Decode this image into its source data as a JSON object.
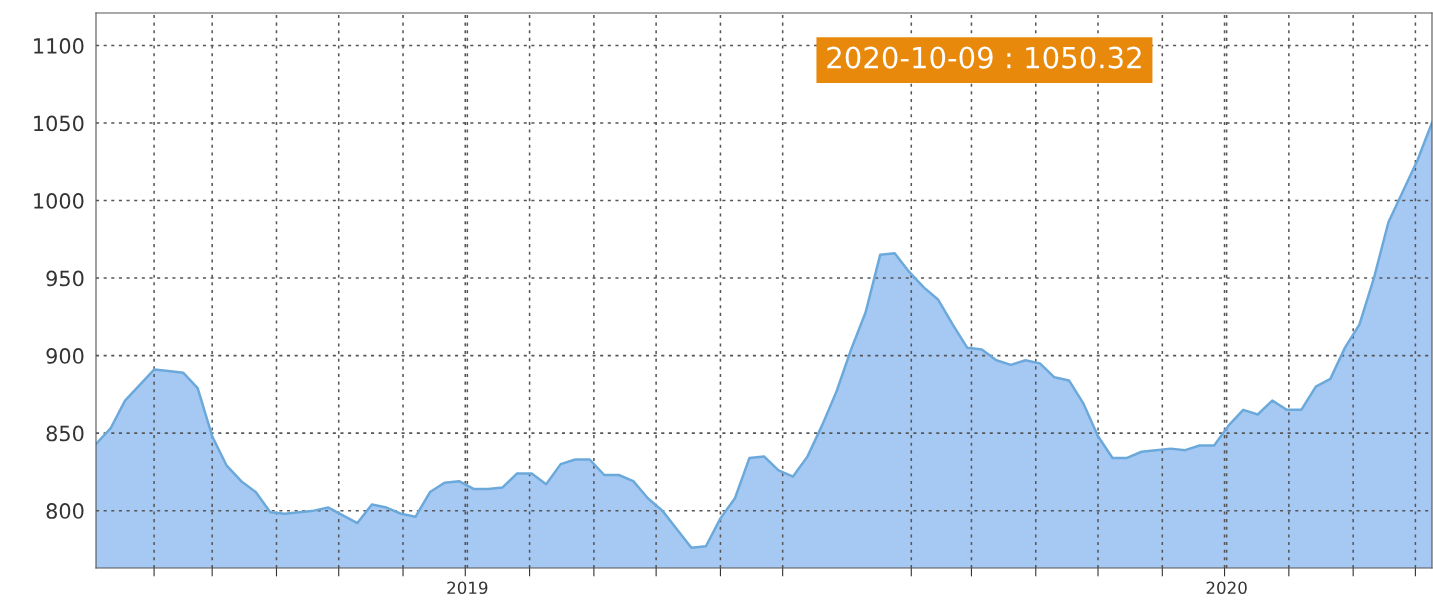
{
  "chart_data": {
    "type": "area",
    "x": [
      "2019-01-04",
      "2019-01-11",
      "2019-01-18",
      "2019-01-25",
      "2019-02-01",
      "2019-02-08",
      "2019-02-15",
      "2019-02-22",
      "2019-03-01",
      "2019-03-08",
      "2019-03-15",
      "2019-03-22",
      "2019-03-29",
      "2019-04-05",
      "2019-04-12",
      "2019-04-19",
      "2019-04-26",
      "2019-05-03",
      "2019-05-10",
      "2019-05-17",
      "2019-05-24",
      "2019-05-31",
      "2019-06-07",
      "2019-06-14",
      "2019-06-21",
      "2019-06-28",
      "2019-07-05",
      "2019-07-12",
      "2019-07-19",
      "2019-07-26",
      "2019-08-02",
      "2019-08-09",
      "2019-08-16",
      "2019-08-23",
      "2019-08-30",
      "2019-09-06",
      "2019-09-13",
      "2019-09-20",
      "2019-09-27",
      "2019-10-04",
      "2019-10-11",
      "2019-10-18",
      "2019-10-25",
      "2019-11-01",
      "2019-11-08",
      "2019-11-15",
      "2019-11-22",
      "2019-11-29",
      "2019-12-06",
      "2019-12-13",
      "2019-12-20",
      "2019-12-27",
      "2020-01-03",
      "2020-01-10",
      "2020-01-17",
      "2020-01-24",
      "2020-01-31",
      "2020-02-07",
      "2020-02-14",
      "2020-02-21",
      "2020-02-28",
      "2020-03-06",
      "2020-03-13",
      "2020-03-20",
      "2020-03-27",
      "2020-04-03",
      "2020-04-10",
      "2020-04-17",
      "2020-04-24",
      "2020-05-01",
      "2020-05-08",
      "2020-05-15",
      "2020-05-22",
      "2020-05-29",
      "2020-06-05",
      "2020-06-12",
      "2020-06-19",
      "2020-06-26",
      "2020-07-03",
      "2020-07-10",
      "2020-07-17",
      "2020-07-24",
      "2020-07-31",
      "2020-08-07",
      "2020-08-14",
      "2020-08-21",
      "2020-08-28",
      "2020-09-04",
      "2020-09-11",
      "2020-09-18",
      "2020-09-25",
      "2020-10-02",
      "2020-10-09"
    ],
    "series": [
      {
        "color": "#a6c9f4",
        "values": [
          843,
          853,
          871,
          881,
          891,
          890,
          889,
          879,
          848,
          829,
          819,
          812,
          799,
          798,
          799,
          800,
          802,
          797,
          792,
          804,
          802,
          798,
          796,
          812,
          818,
          819,
          814,
          814,
          815,
          824,
          824,
          817,
          830,
          833,
          833,
          823,
          823,
          819,
          808,
          800,
          788,
          776,
          777,
          795,
          808,
          834,
          835,
          826,
          822,
          835,
          855,
          877,
          904,
          928,
          965,
          966,
          954,
          944,
          936,
          920,
          905,
          904,
          897,
          894,
          897,
          895,
          886,
          884,
          869,
          848,
          834,
          834,
          838,
          839,
          840,
          839,
          842,
          842,
          855,
          865,
          862,
          871,
          865,
          865,
          880,
          885,
          905,
          920,
          950,
          986,
          1006,
          1026,
          1050.32
        ]
      }
    ],
    "xlim": [
      "2019-01-04",
      "2020-10-09"
    ],
    "xticks": [
      {
        "value": "2019-02-01",
        "label": null
      },
      {
        "value": "2019-03-01",
        "label": null
      },
      {
        "value": "2019-04-01",
        "label": null
      },
      {
        "value": "2019-05-01",
        "label": null
      },
      {
        "value": "2019-06-01",
        "label": null
      },
      {
        "value": "2019-07-01",
        "label": null
      },
      {
        "value": "2019-07-02",
        "label": "2019"
      },
      {
        "value": "2019-08-01",
        "label": null
      },
      {
        "value": "2019-09-01",
        "label": null
      },
      {
        "value": "2019-10-01",
        "label": null
      },
      {
        "value": "2019-11-01",
        "label": null
      },
      {
        "value": "2019-12-01",
        "label": null
      },
      {
        "value": "2020-02-01",
        "label": null
      },
      {
        "value": "2020-03-01",
        "label": null
      },
      {
        "value": "2020-04-01",
        "label": null
      },
      {
        "value": "2020-05-01",
        "label": null
      },
      {
        "value": "2020-06-01",
        "label": null
      },
      {
        "value": "2020-07-01",
        "label": null
      },
      {
        "value": "2020-07-02",
        "label": "2020"
      },
      {
        "value": "2020-08-01",
        "label": null
      },
      {
        "value": "2020-09-01",
        "label": null
      },
      {
        "value": "2020-10-01",
        "label": null
      }
    ],
    "ylim": [
      763,
      1121
    ],
    "yticks": [
      800,
      850,
      900,
      950,
      1000,
      1050,
      1100
    ],
    "grid": true,
    "annotations": [
      "2020-10-09 : 1050.32"
    ]
  }
}
